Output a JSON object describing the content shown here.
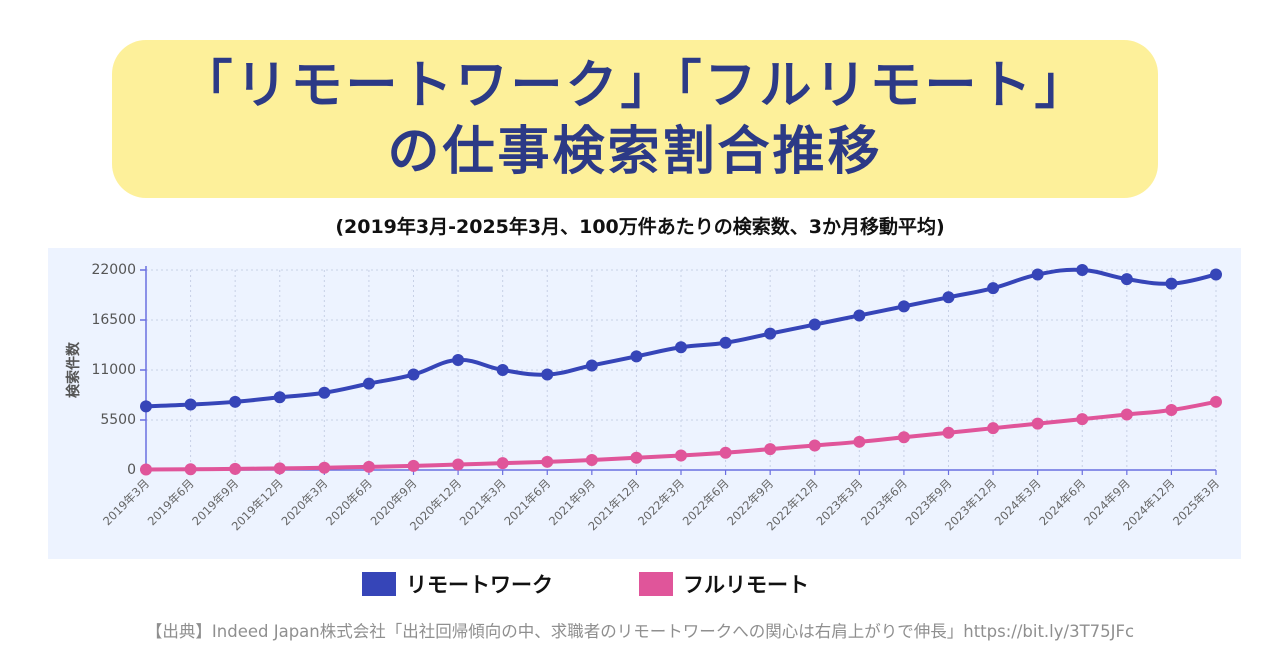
{
  "header": {
    "title_line1": "「リモートワーク」「フルリモート」",
    "title_line2": "の仕事検索割合推移"
  },
  "subtitle": "(2019年3月-2025年3月、100万件あたりの検索数、3か月移動平均)",
  "source": "【出典】Indeed Japan株式会社「出社回帰傾向の中、求職者のリモートワークへの関心は右肩上がりで伸長」https://bit.ly/3T75JFc",
  "colors": {
    "remote": "#3645b8",
    "full_remote": "#e0559a",
    "plot_bg": "#edf3ff",
    "title_bg": "#fdf09a",
    "title_text": "#2c3a86"
  },
  "chart_data": {
    "type": "line",
    "ylabel": "検索件数",
    "xlabel": "",
    "ylim": [
      0,
      22000
    ],
    "yticks": [
      0,
      5500,
      11000,
      16500,
      22000
    ],
    "grid": true,
    "legend_position": "bottom",
    "categories": [
      "2019年3月",
      "2019年6月",
      "2019年9月",
      "2019年12月",
      "2020年3月",
      "2020年6月",
      "2020年9月",
      "2020年12月",
      "2021年3月",
      "2021年6月",
      "2021年9月",
      "2021年12月",
      "2022年3月",
      "2022年6月",
      "2022年9月",
      "2022年12月",
      "2023年3月",
      "2023年6月",
      "2023年9月",
      "2023年12月",
      "2024年3月",
      "2024年6月",
      "2024年9月",
      "2024年12月",
      "2025年3月"
    ],
    "series": [
      {
        "name": "リモートワーク",
        "color": "#3645b8",
        "values": [
          7000,
          7200,
          7500,
          8000,
          8500,
          9500,
          10500,
          12100,
          11000,
          10500,
          11500,
          12500,
          13500,
          14000,
          15000,
          16000,
          17000,
          18000,
          19000,
          20000,
          21500,
          22000,
          21000,
          20500,
          21500
        ]
      },
      {
        "name": "フルリモート",
        "color": "#e0559a",
        "values": [
          50,
          80,
          120,
          180,
          250,
          350,
          450,
          600,
          750,
          900,
          1100,
          1350,
          1600,
          1900,
          2300,
          2700,
          3100,
          3600,
          4100,
          4600,
          5100,
          5600,
          6100,
          6600,
          7500
        ]
      }
    ]
  }
}
